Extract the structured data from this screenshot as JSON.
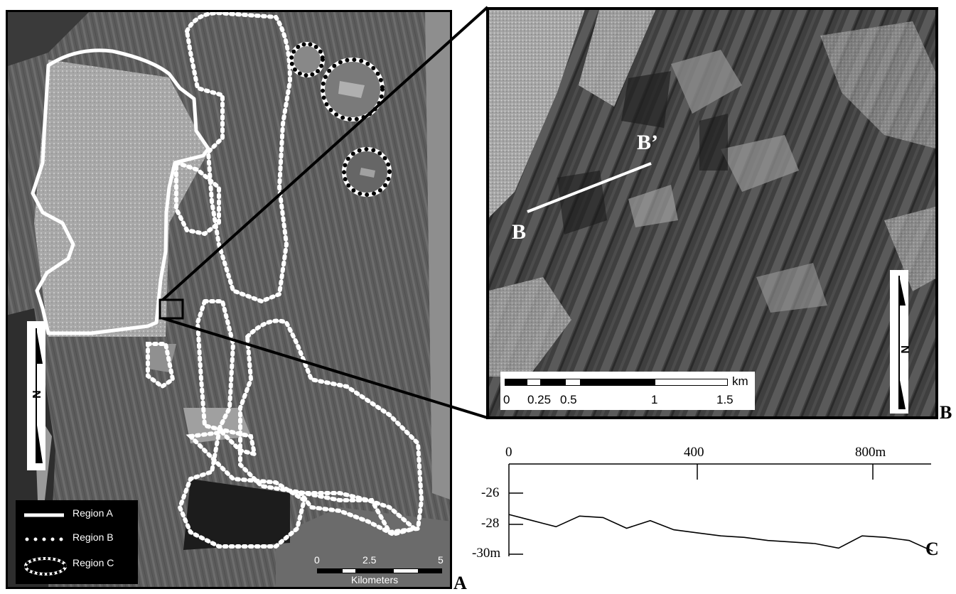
{
  "panels": {
    "a": "A",
    "b": "B",
    "c": "C"
  },
  "legend": {
    "region_a": "Region A",
    "region_b": "Region B",
    "region_c": "Region C"
  },
  "scalebar_a": {
    "ticks": [
      "0",
      "2.5",
      "5"
    ],
    "unit": "Kilometers"
  },
  "scalebar_b": {
    "ticks": [
      "0",
      "0.25",
      "0.5",
      "1",
      "1.5"
    ],
    "unit": "km"
  },
  "transect": {
    "start": "B",
    "end": "B’"
  },
  "north_label": "N",
  "profile": {
    "x_ticks": [
      "0",
      "400",
      "800m"
    ],
    "y_ticks": [
      "-26",
      "-28",
      "-30m"
    ],
    "x_values_m": [
      0,
      50,
      100,
      150,
      200,
      250,
      300,
      350,
      400,
      450,
      500,
      550,
      600,
      650,
      700,
      750,
      800,
      850,
      900
    ],
    "depth_m": [
      -27.4,
      -27.8,
      -28.2,
      -27.5,
      -27.6,
      -28.3,
      -27.8,
      -28.4,
      -28.6,
      -28.8,
      -28.9,
      -29.1,
      -29.2,
      -29.3,
      -29.6,
      -28.8,
      -28.9,
      -29.1,
      -29.8
    ]
  },
  "colors": {
    "region_outline": "#ffffff",
    "frame": "#000000"
  }
}
